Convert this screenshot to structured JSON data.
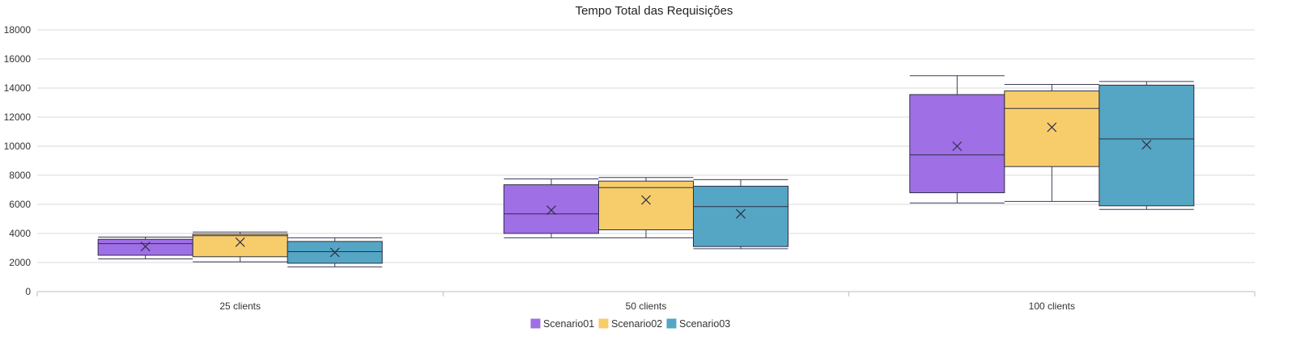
{
  "chart_data": {
    "type": "box",
    "title": "Tempo Total das Requisições",
    "categories": [
      "25 clients",
      "50 clients",
      "100 clients"
    ],
    "ylim": [
      0,
      18000
    ],
    "yticks": [
      0,
      2000,
      4000,
      6000,
      8000,
      10000,
      12000,
      14000,
      16000,
      18000
    ],
    "grid": true,
    "legend_position": "bottom-center",
    "series": [
      {
        "name": "Scenario01",
        "color": "#9f6fe6",
        "boxes": [
          {
            "min": 2250,
            "q1": 2500,
            "median": 3300,
            "q3": 3600,
            "max": 3750,
            "mean": 3100
          },
          {
            "min": 3700,
            "q1": 4000,
            "median": 5350,
            "q3": 7350,
            "max": 7750,
            "mean": 5600
          },
          {
            "min": 6100,
            "q1": 6800,
            "median": 9400,
            "q3": 13550,
            "max": 14850,
            "mean": 10000
          }
        ]
      },
      {
        "name": "Scenario02",
        "color": "#f7cd6b",
        "boxes": [
          {
            "min": 2050,
            "q1": 2400,
            "median": 3850,
            "q3": 3950,
            "max": 4100,
            "mean": 3400
          },
          {
            "min": 3700,
            "q1": 4250,
            "median": 7150,
            "q3": 7600,
            "max": 7850,
            "mean": 6300
          },
          {
            "min": 6200,
            "q1": 8600,
            "median": 12600,
            "q3": 13800,
            "max": 14250,
            "mean": 11300
          }
        ]
      },
      {
        "name": "Scenario03",
        "color": "#55a5c4",
        "boxes": [
          {
            "min": 1700,
            "q1": 1950,
            "median": 2750,
            "q3": 3450,
            "max": 3700,
            "mean": 2700
          },
          {
            "min": 2950,
            "q1": 3100,
            "median": 5850,
            "q3": 7250,
            "max": 7700,
            "mean": 5350
          },
          {
            "min": 5650,
            "q1": 5900,
            "median": 10500,
            "q3": 14200,
            "max": 14450,
            "mean": 10100
          }
        ]
      }
    ]
  }
}
